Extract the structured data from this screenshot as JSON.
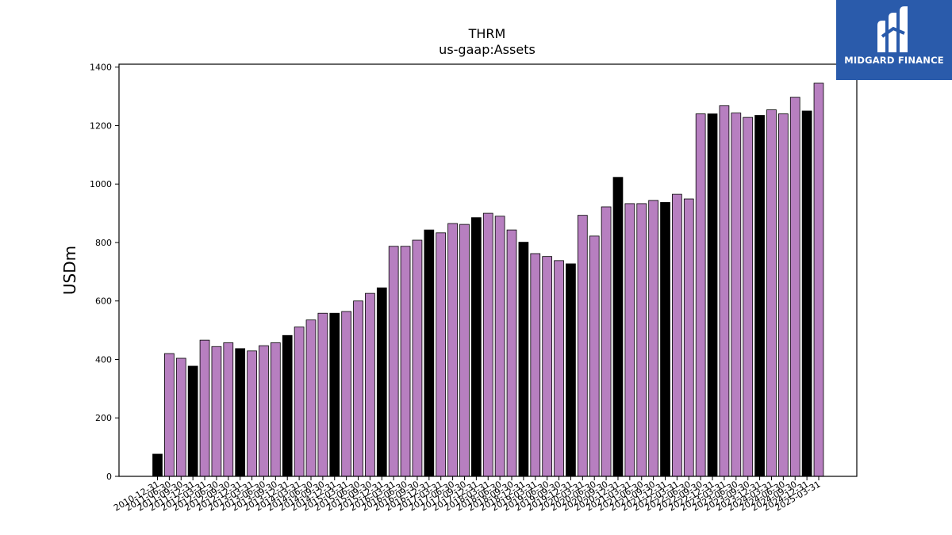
{
  "colors": {
    "bar_default": "#b77fc0",
    "bar_highlight": "#000000",
    "brand_blue": "#2a5bab"
  },
  "brand": {
    "name": "MIDGARD FINANCE",
    "logo_icon": "midgard-logo-icon"
  },
  "chart_data": {
    "type": "bar",
    "title": "THRM",
    "subtitle": "us-gaap:Assets",
    "xlabel": "",
    "ylabel": "USDm",
    "ylim": [
      0,
      1410
    ],
    "yticks": [
      0,
      200,
      400,
      600,
      800,
      1000,
      1200,
      1400
    ],
    "grid": false,
    "legend": "none",
    "categories": [
      "2010-12-31",
      "2011-06-30",
      "2011-09-30",
      "2011-12-31",
      "2012-03-31",
      "2012-06-30",
      "2012-09-30",
      "2012-12-31",
      "2013-03-31",
      "2013-06-30",
      "2013-09-30",
      "2013-12-31",
      "2014-03-31",
      "2014-06-30",
      "2014-09-30",
      "2014-12-31",
      "2015-03-31",
      "2015-06-30",
      "2015-09-30",
      "2015-12-31",
      "2016-03-31",
      "2016-06-30",
      "2016-09-30",
      "2016-12-31",
      "2017-03-31",
      "2017-06-30",
      "2017-09-30",
      "2017-12-31",
      "2018-03-31",
      "2018-06-30",
      "2018-09-30",
      "2018-12-31",
      "2019-03-31",
      "2019-06-30",
      "2019-09-30",
      "2019-12-31",
      "2020-03-31",
      "2020-06-30",
      "2020-09-30",
      "2020-12-31",
      "2021-03-31",
      "2021-06-30",
      "2021-09-30",
      "2021-12-31",
      "2022-03-31",
      "2022-06-30",
      "2022-09-30",
      "2022-12-31",
      "2023-03-31",
      "2023-06-30",
      "2023-09-30",
      "2023-12-31",
      "2024-03-31",
      "2024-06-30",
      "2024-09-30",
      "2024-12-31",
      "2025-03-31"
    ],
    "values": [
      76,
      420,
      404,
      377,
      466,
      444,
      457,
      437,
      429,
      447,
      457,
      482,
      511,
      535,
      558,
      558,
      564,
      600,
      626,
      645,
      787,
      787,
      808,
      843,
      833,
      865,
      862,
      885,
      900,
      890,
      843,
      801,
      762,
      752,
      738,
      727,
      893,
      822,
      922,
      1023,
      933,
      933,
      944,
      937,
      965,
      949,
      1240,
      1240,
      1268,
      1243,
      1228,
      1235,
      1254,
      1240,
      1297,
      1250,
      1345
    ],
    "highlight": [
      true,
      false,
      false,
      true,
      false,
      false,
      false,
      true,
      false,
      false,
      false,
      true,
      false,
      false,
      false,
      true,
      false,
      false,
      false,
      true,
      false,
      false,
      false,
      true,
      false,
      false,
      false,
      true,
      false,
      false,
      false,
      true,
      false,
      false,
      false,
      true,
      false,
      false,
      false,
      true,
      false,
      false,
      false,
      true,
      false,
      false,
      false,
      true,
      false,
      false,
      false,
      true,
      false,
      false,
      false,
      true,
      false
    ]
  }
}
